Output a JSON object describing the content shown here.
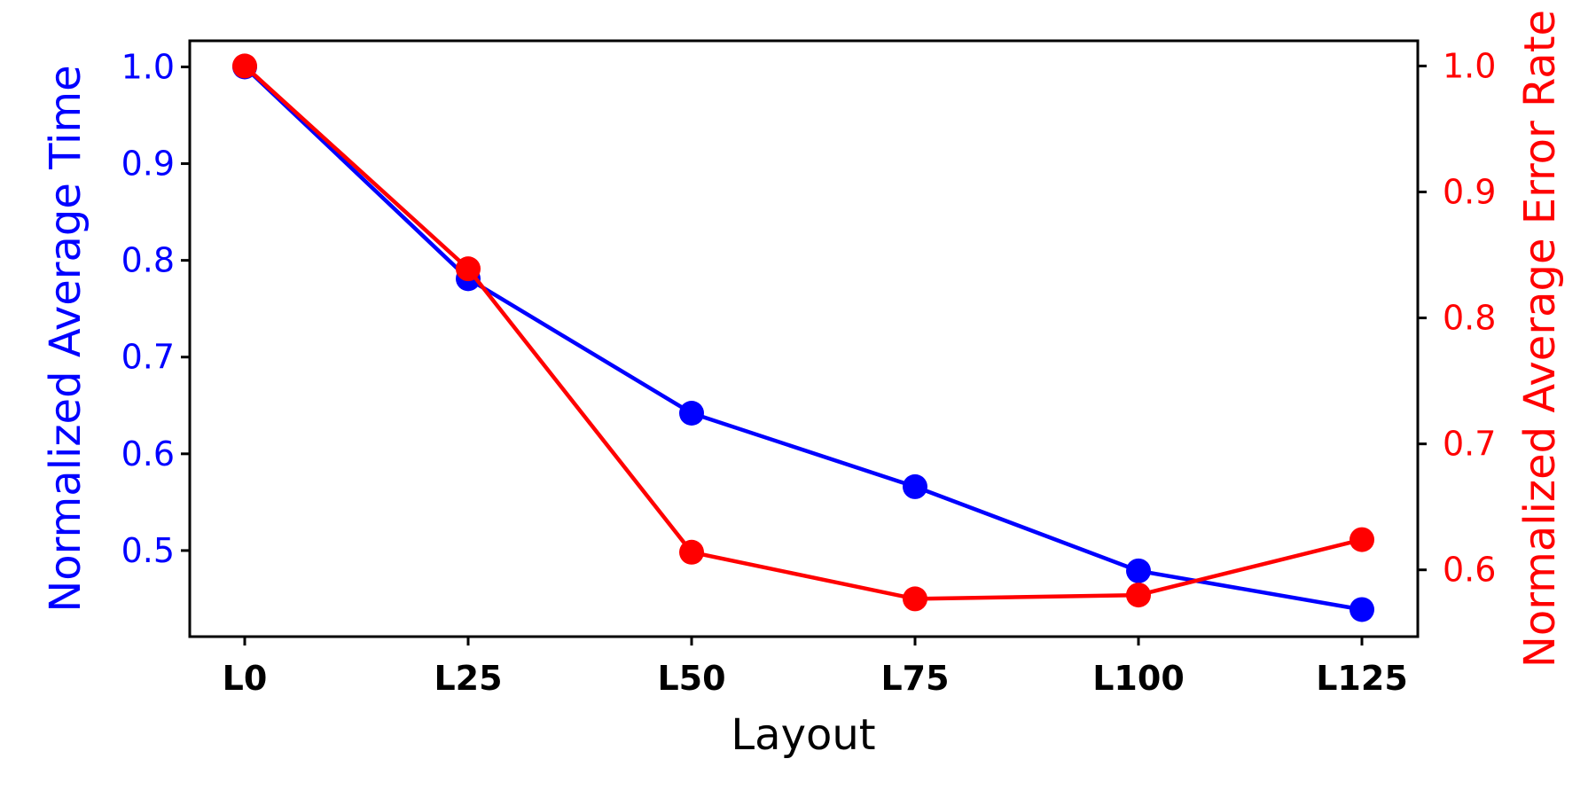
{
  "chart_data": {
    "type": "line",
    "categories": [
      "L0",
      "L25",
      "L50",
      "L75",
      "L100",
      "L125"
    ],
    "xlabel": "Layout",
    "series": [
      {
        "name": "Normalized Average Time",
        "axis": "left",
        "color": "#0000ff",
        "values": [
          1.0,
          0.781,
          0.642,
          0.566,
          0.479,
          0.439
        ]
      },
      {
        "name": "Normalized Average Error Rate",
        "axis": "right",
        "color": "#ff0000",
        "values": [
          1.0,
          0.839,
          0.614,
          0.577,
          0.58,
          0.624
        ]
      }
    ],
    "y_left": {
      "label": "Normalized Average Time",
      "color": "#0000ff",
      "ylim": [
        0.411,
        1.027
      ],
      "ticks": [
        0.5,
        0.6,
        0.7,
        0.8,
        0.9,
        1.0
      ],
      "tick_labels": [
        "0.5",
        "0.6",
        "0.7",
        "0.8",
        "0.9",
        "1.0"
      ]
    },
    "y_right": {
      "label": "Normalized Average Error Rate",
      "color": "#ff0000",
      "ylim": [
        0.547,
        1.02
      ],
      "ticks": [
        0.6,
        0.7,
        0.8,
        0.9,
        1.0
      ],
      "tick_labels": [
        "0.6",
        "0.7",
        "0.8",
        "0.9",
        "1.0"
      ]
    },
    "grid": false,
    "legend": "none"
  }
}
